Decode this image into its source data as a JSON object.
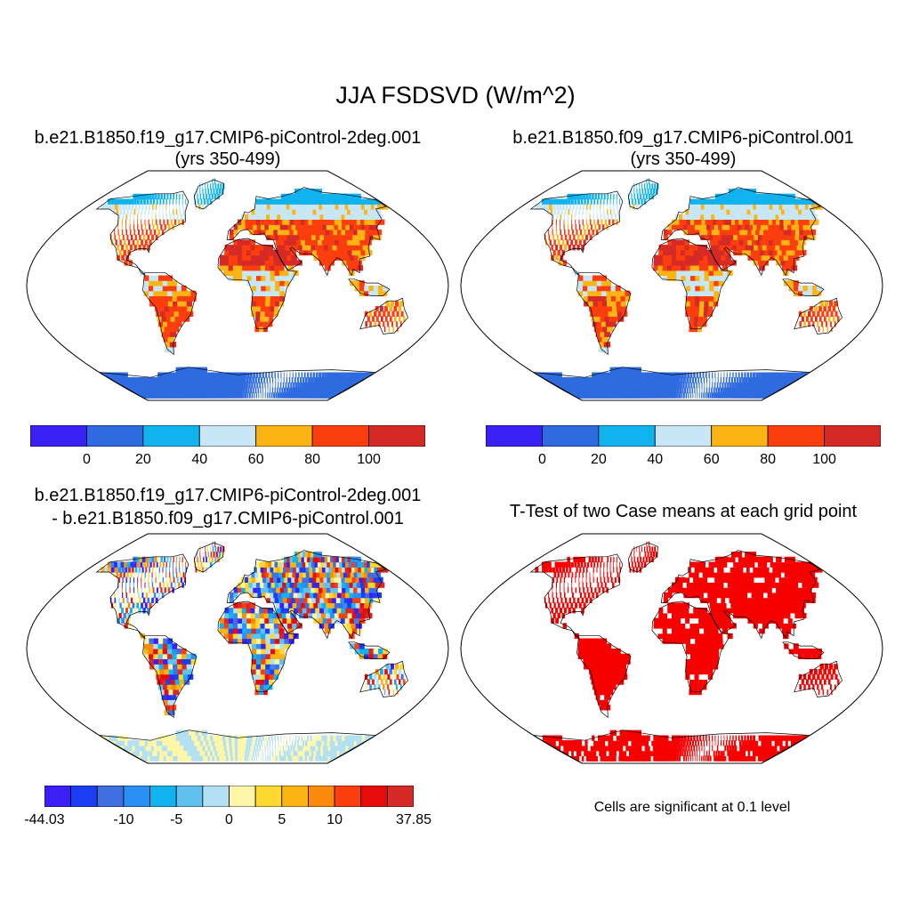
{
  "main_title": "JJA FSDSVD (W/m^2)",
  "panels": {
    "top_left": {
      "title_line1": "b.e21.B1850.f19_g17.CMIP6-piControl-2deg.001",
      "title_line2": "(yrs 350-499)"
    },
    "top_right": {
      "title_line1": "b.e21.B1850.f09_g17.CMIP6-piControl.001",
      "title_line2": "(yrs 350-499)"
    },
    "bottom_left": {
      "title_line1": "b.e21.B1850.f19_g17.CMIP6-piControl-2deg.001",
      "title_line2": "- b.e21.B1850.f09_g17.CMIP6-piControl.001"
    },
    "bottom_right": {
      "title_line1": "T-Test of two Case means at each grid point",
      "caption": "Cells are significant at 0.1 level"
    }
  },
  "colorbars": {
    "abs": {
      "colors": [
        "#3a22f5",
        "#2f6be0",
        "#11b3ef",
        "#c8e7f6",
        "#fbb414",
        "#fb3e0d",
        "#d52a26"
      ],
      "ticks": [
        "0",
        "20",
        "40",
        "60",
        "80",
        "100"
      ]
    },
    "diff": {
      "colors": [
        "#3a20f6",
        "#1c3ef2",
        "#3f6fe0",
        "#2a90f3",
        "#11b3ef",
        "#5fc1ee",
        "#b4e0f3",
        "#fef7a9",
        "#fdd830",
        "#fbb414",
        "#fb8a0c",
        "#fb3e0d",
        "#e70b0b",
        "#d52a26"
      ],
      "ticks": [
        "-44.03",
        "-10",
        "-5",
        "0",
        "5",
        "10",
        "37.85"
      ]
    }
  },
  "signif_color": "#f60000",
  "land_color_missing": "#ffffff"
}
